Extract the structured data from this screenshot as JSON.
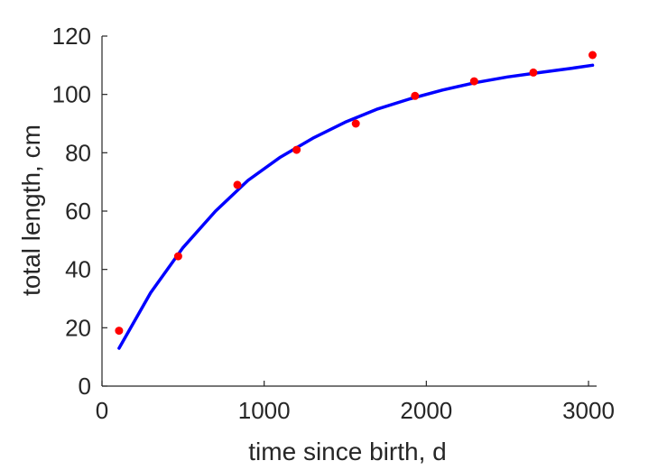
{
  "chart_data": {
    "type": "scatter",
    "title": "",
    "xlabel": "time since birth, d",
    "ylabel": "total length, cm",
    "xlim": [
      0,
      3050
    ],
    "ylim": [
      0,
      120
    ],
    "xticks": [
      0,
      1000,
      2000,
      3000
    ],
    "yticks": [
      0,
      20,
      40,
      60,
      80,
      100,
      120
    ],
    "grid": false,
    "legend": "none",
    "colors": {
      "observed": "#ff0000",
      "fit": "#0000ff",
      "axis": "#262626"
    },
    "series": [
      {
        "kind": "points",
        "x": [
          105,
          470,
          835,
          1200,
          1565,
          1930,
          2295,
          2660,
          3025
        ],
        "y": [
          19,
          44.5,
          69,
          81,
          90,
          99.5,
          104.5,
          107.5,
          113.5
        ]
      },
      {
        "kind": "curve",
        "x": [
          105,
          300,
          500,
          700,
          900,
          1100,
          1300,
          1500,
          1700,
          1900,
          2100,
          2300,
          2500,
          2700,
          2900,
          3025
        ],
        "y": [
          13,
          32,
          47.5,
          60,
          70.5,
          78.5,
          85,
          90.5,
          95,
          98.5,
          101.5,
          104,
          106,
          107.5,
          109,
          110
        ]
      }
    ]
  }
}
